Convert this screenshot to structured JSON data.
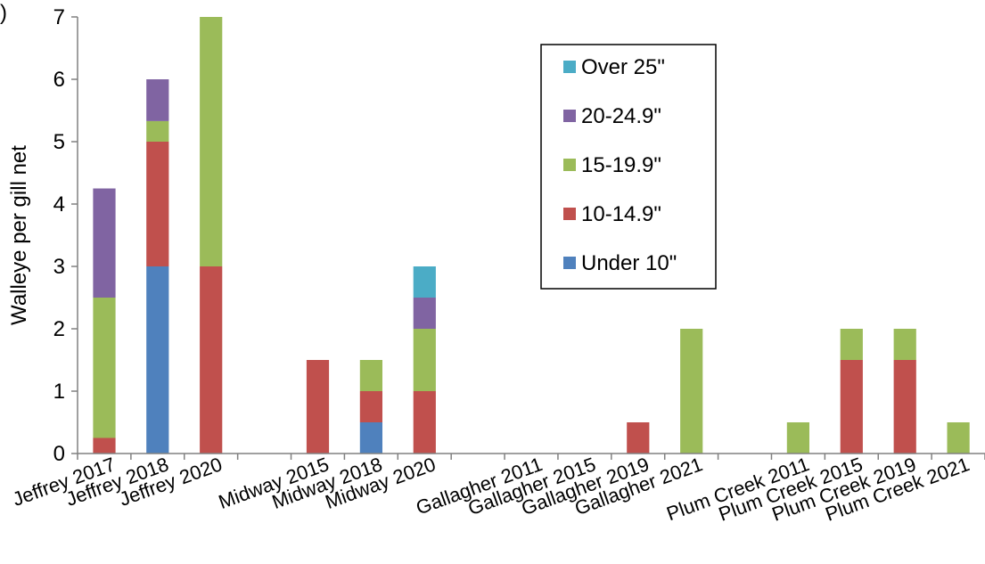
{
  "panel_label": ")",
  "chart_data": {
    "type": "bar",
    "stacked": true,
    "title": "",
    "xlabel": "",
    "ylabel": "Walleye per gill net",
    "ylim": [
      0,
      7
    ],
    "yticks": [
      0,
      1,
      2,
      3,
      4,
      5,
      6,
      7
    ],
    "grid": false,
    "legend_position": "top-right",
    "categories": [
      "Jeffrey 2017",
      "Jeffrey 2018",
      "Jeffrey 2020",
      "",
      "Midway 2015",
      "Midway 2018",
      "Midway 2020",
      "",
      "Gallagher 2011",
      "Gallagher 2015",
      "Gallagher 2019",
      "Gallagher 2021",
      "",
      "Plum Creek 2011",
      "Plum Creek 2015",
      "Plum Creek 2019",
      "Plum Creek 2021"
    ],
    "series": [
      {
        "name": "Under 10\"",
        "color": "#4f81bd",
        "values": [
          0,
          3,
          0,
          0,
          0,
          0.5,
          0,
          0,
          0,
          0,
          0,
          0,
          0,
          0,
          0,
          0,
          0
        ]
      },
      {
        "name": "10-14.9\"",
        "color": "#c0504d",
        "values": [
          0.25,
          2,
          3,
          0,
          1.5,
          0.5,
          1,
          0,
          0,
          0,
          0.5,
          0,
          0,
          0,
          1.5,
          1.5,
          0
        ]
      },
      {
        "name": "15-19.9\"",
        "color": "#9bbb59",
        "values": [
          2.25,
          0.33,
          4,
          0,
          0,
          0.5,
          1,
          0,
          0,
          0,
          0,
          2,
          0,
          0.5,
          0.5,
          0.5,
          0.5
        ]
      },
      {
        "name": "20-24.9\"",
        "color": "#8064a2",
        "values": [
          1.75,
          0.67,
          0,
          0,
          0,
          0,
          0.5,
          0,
          0,
          0,
          0,
          0,
          0,
          0,
          0,
          0,
          0
        ]
      },
      {
        "name": "Over 25\"",
        "color": "#4bacc6",
        "values": [
          0,
          0,
          0,
          0,
          0,
          0,
          0.5,
          0,
          0,
          0,
          0,
          0,
          0,
          0,
          0,
          0,
          0
        ]
      }
    ]
  }
}
